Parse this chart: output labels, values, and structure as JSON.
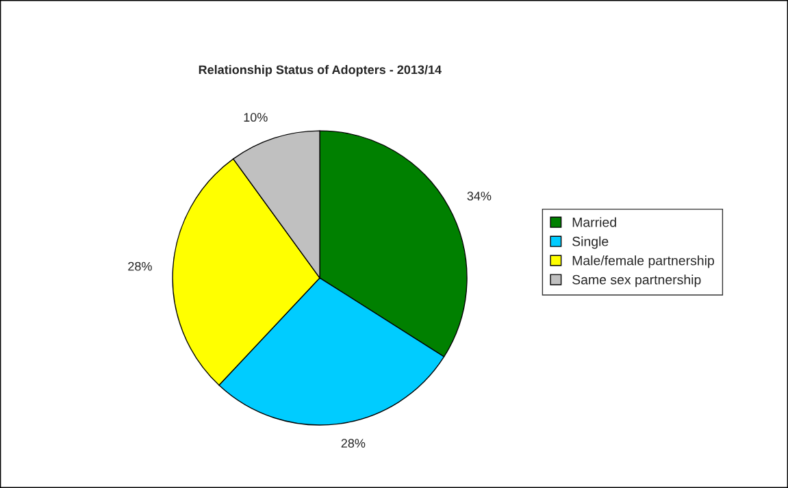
{
  "chart_data": {
    "type": "pie",
    "title": "Relationship Status of Adopters - 2013/14",
    "categories": [
      "Married",
      "Single",
      "Male/female partnership",
      "Same sex partnership"
    ],
    "values": [
      34,
      28,
      28,
      10
    ],
    "colors": [
      "#008000",
      "#00ccff",
      "#ffff00",
      "#c0c0c0"
    ],
    "value_labels": [
      "34%",
      "28%",
      "28%",
      "10%"
    ],
    "legend": "right"
  }
}
